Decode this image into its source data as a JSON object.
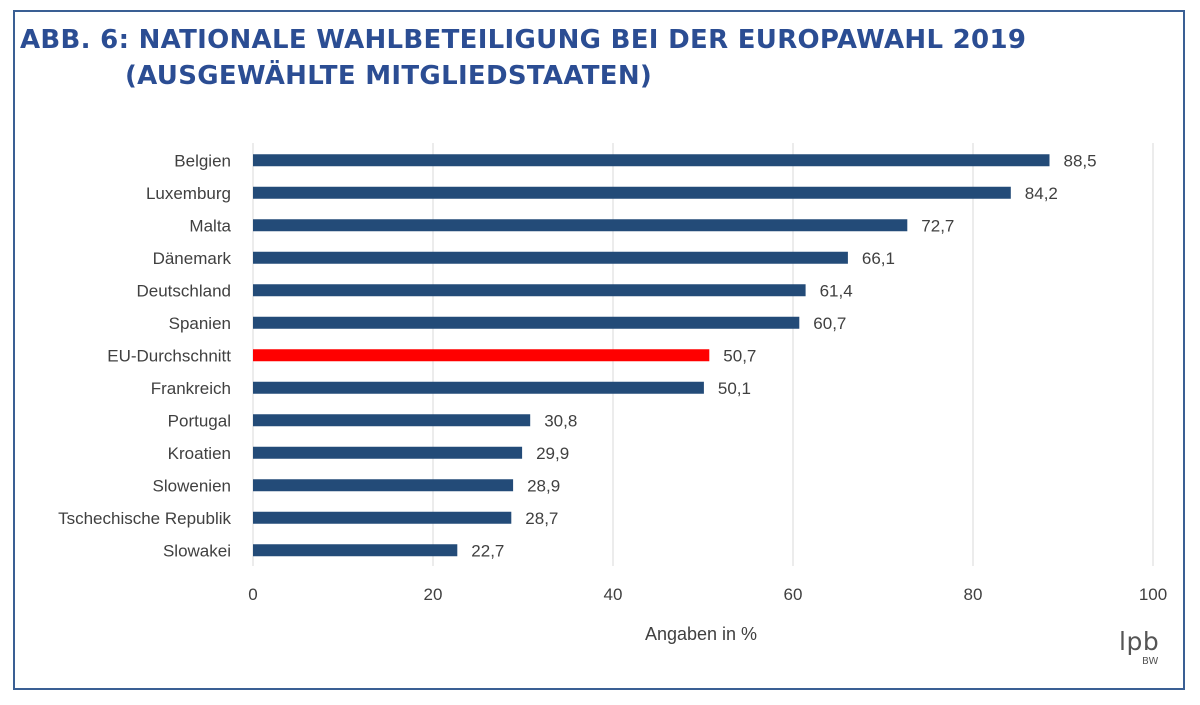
{
  "title_line1": "ABB. 6: NATIONALE WAHLBETEILIGUNG BEI DER EUROPAWAHL 2019",
  "title_line2": "(AUSGEWÄHLTE MITGLIEDSTAATEN)",
  "logo_main": "lpb",
  "logo_sub": "BW",
  "colors": {
    "bar": "#234b78",
    "highlight": "#ff0000",
    "title": "#2b4d93",
    "grid": "#d9d9d9",
    "text": "#404040"
  },
  "chart_data": {
    "type": "bar",
    "orientation": "horizontal",
    "categories": [
      "Belgien",
      "Luxemburg",
      "Malta",
      "Dänemark",
      "Deutschland",
      "Spanien",
      "EU-Durchschnitt",
      "Frankreich",
      "Portugal",
      "Kroatien",
      "Slowenien",
      "Tschechische Republik",
      "Slowakei"
    ],
    "values": [
      88.5,
      84.2,
      72.7,
      66.1,
      61.4,
      60.7,
      50.7,
      50.1,
      30.8,
      29.9,
      28.9,
      28.7,
      22.7
    ],
    "value_labels": [
      "88,5",
      "84,2",
      "72,7",
      "66,1",
      "61,4",
      "60,7",
      "50,7",
      "50,1",
      "30,8",
      "29,9",
      "28,9",
      "28,7",
      "22,7"
    ],
    "highlight_category": "EU-Durchschnitt",
    "xlabel": "Angaben in %",
    "xlim": [
      0,
      100
    ],
    "xticks": [
      0,
      20,
      40,
      60,
      80,
      100
    ],
    "xtick_labels": [
      "0",
      "20",
      "40",
      "60",
      "80",
      "100"
    ],
    "grid": "vertical"
  }
}
